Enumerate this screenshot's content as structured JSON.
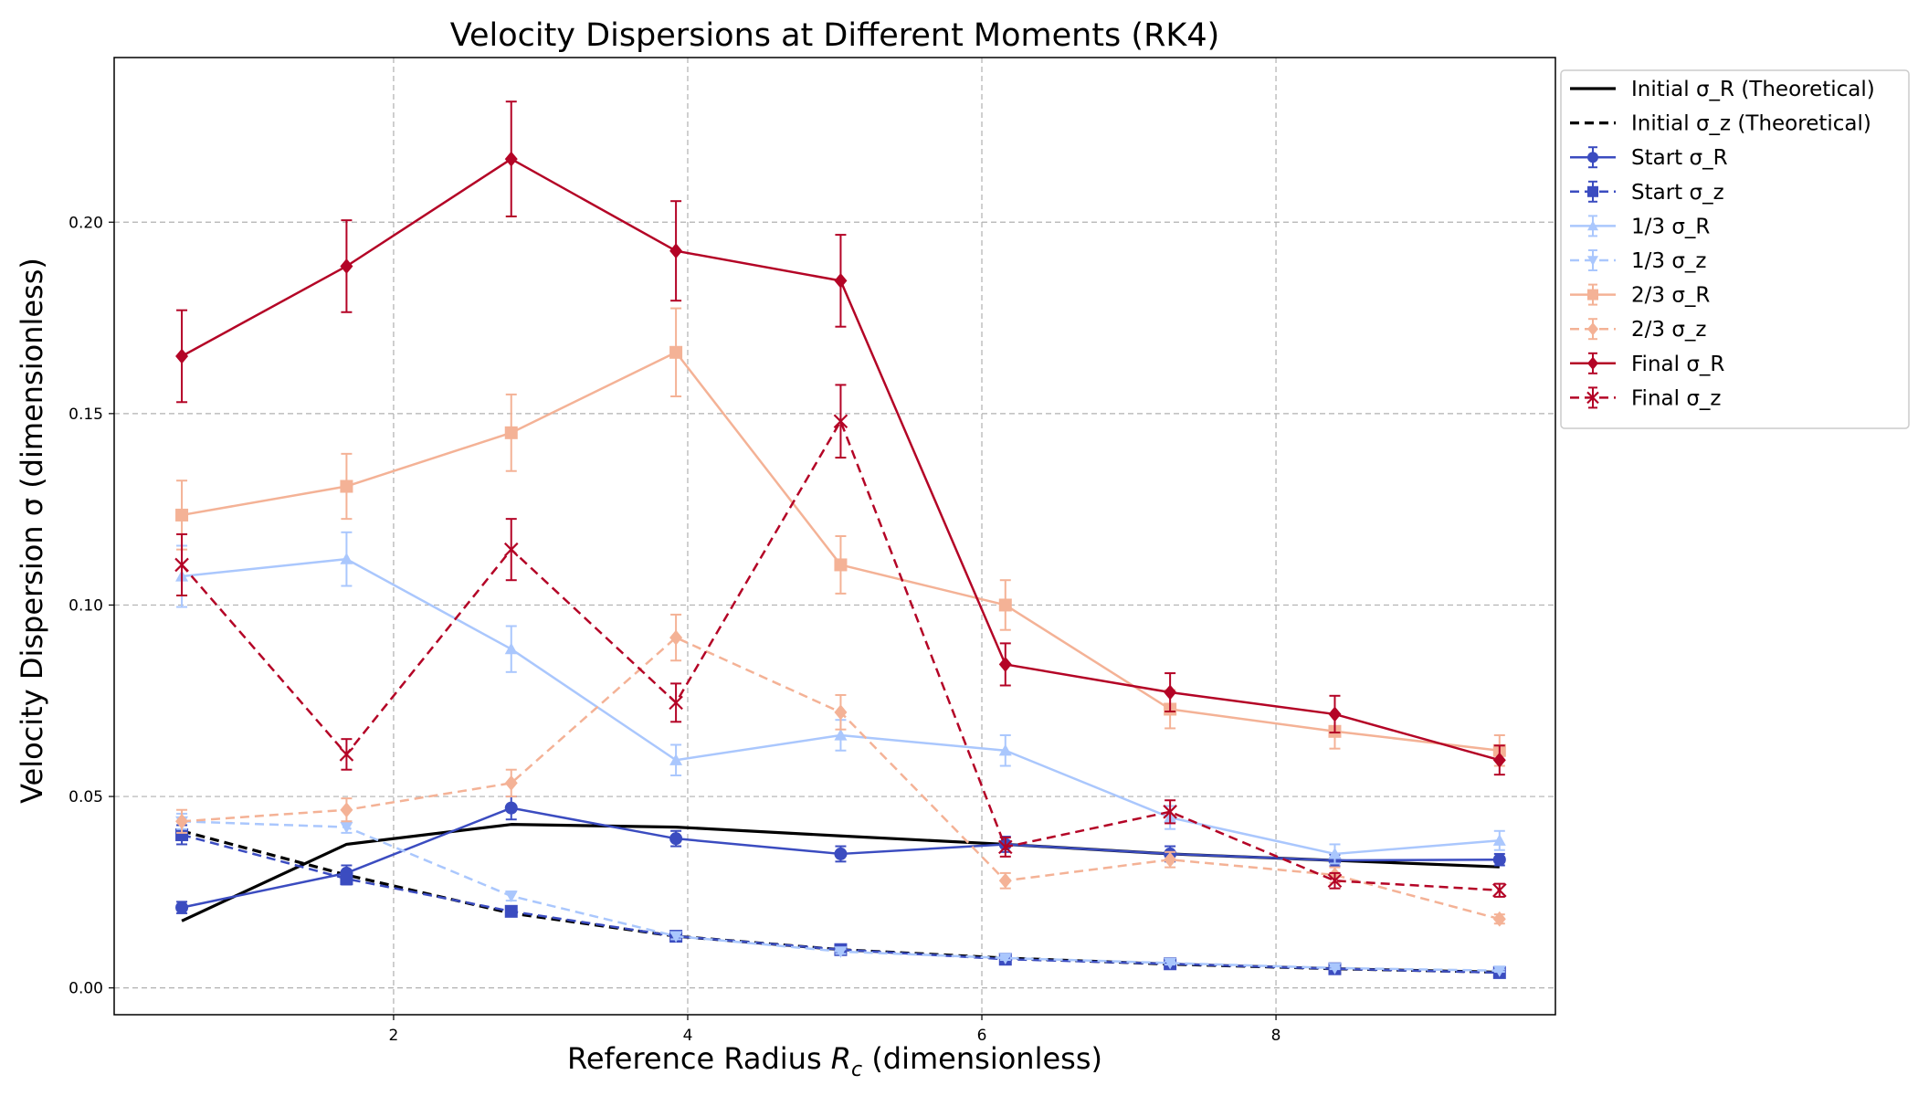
{
  "chart_data": {
    "type": "line",
    "title": "Velocity Dispersions at Different Moments (RK4)",
    "xlabel": "Reference Radius ",
    "xlabel_symbol": "R",
    "xlabel_subscript": "c",
    "xlabel_suffix": " (dimensionless)",
    "ylabel": "Velocity Dispersion σ (dimensionless)",
    "xlim": [
      0.1,
      9.9
    ],
    "ylim": [
      -0.007,
      0.243
    ],
    "xticks": [
      2,
      4,
      6,
      8
    ],
    "yticks": [
      0.0,
      0.05,
      0.1,
      0.15,
      0.2
    ],
    "xtick_labels": [
      "2",
      "4",
      "6",
      "8"
    ],
    "ytick_labels": [
      "0.00",
      "0.05",
      "0.10",
      "0.15",
      "0.20"
    ],
    "grid": true,
    "legend_position": "outside-right-top",
    "x": [
      0.56,
      1.68,
      2.8,
      3.92,
      5.04,
      6.16,
      7.28,
      8.4,
      9.52
    ],
    "theory_x": [
      0.56,
      1.68,
      2.8,
      3.92,
      5.04,
      6.16,
      7.28,
      8.4,
      9.52
    ],
    "series": [
      {
        "name": "Initial σ_R (Theoretical)",
        "color": "#000000",
        "dash": "solid",
        "marker": "none",
        "theory": true,
        "values": [
          0.0175,
          0.0375,
          0.0427,
          0.042,
          0.0397,
          0.0375,
          0.035,
          0.0333,
          0.0316
        ]
      },
      {
        "name": "Initial σ_z (Theoretical)",
        "color": "#000000",
        "dash": "dashed",
        "marker": "none",
        "theory": true,
        "values": [
          0.041,
          0.0295,
          0.0195,
          0.0135,
          0.01,
          0.0078,
          0.0062,
          0.005,
          0.0041
        ]
      },
      {
        "name": "Start σ_R",
        "color": "#3b4cc0",
        "dash": "solid",
        "marker": "circle",
        "values": [
          0.021,
          0.03,
          0.047,
          0.039,
          0.035,
          0.0375,
          0.035,
          0.0333,
          0.0335
        ],
        "errors": [
          0.0015,
          0.002,
          0.003,
          0.002,
          0.002,
          0.002,
          0.002,
          0.0015,
          0.0015
        ]
      },
      {
        "name": "Start σ_z",
        "color": "#3b4cc0",
        "dash": "dashed",
        "marker": "square",
        "values": [
          0.04,
          0.0285,
          0.02,
          0.0135,
          0.01,
          0.0075,
          0.0063,
          0.005,
          0.004
        ],
        "errors": [
          0.0025,
          0.0015,
          0.001,
          0.0008,
          0.0006,
          0.0005,
          0.0004,
          0.0003,
          0.0003
        ]
      },
      {
        "name": "1/3 σ_R",
        "color": "#aac7fd",
        "dash": "solid",
        "marker": "triangle-up",
        "values": [
          0.1075,
          0.112,
          0.0885,
          0.0595,
          0.066,
          0.062,
          0.0445,
          0.035,
          0.0385
        ],
        "errors": [
          0.008,
          0.007,
          0.006,
          0.004,
          0.004,
          0.004,
          0.003,
          0.0025,
          0.0025
        ]
      },
      {
        "name": "1/3 σ_z",
        "color": "#aac7fd",
        "dash": "dashed",
        "marker": "triangle-down",
        "values": [
          0.0435,
          0.042,
          0.024,
          0.0135,
          0.0095,
          0.0078,
          0.0065,
          0.0052,
          0.0045
        ],
        "errors": [
          0.002,
          0.0015,
          0.0012,
          0.0008,
          0.0006,
          0.0005,
          0.0004,
          0.0003,
          0.0003
        ]
      },
      {
        "name": "2/3 σ_R",
        "color": "#f4b296",
        "dash": "solid",
        "marker": "square",
        "values": [
          0.1235,
          0.131,
          0.145,
          0.166,
          0.1105,
          0.1,
          0.0728,
          0.067,
          0.062
        ],
        "errors": [
          0.009,
          0.0085,
          0.01,
          0.0115,
          0.0075,
          0.0065,
          0.005,
          0.0045,
          0.004
        ]
      },
      {
        "name": "2/3 σ_z",
        "color": "#f4b296",
        "dash": "dashed",
        "marker": "diamond",
        "values": [
          0.0435,
          0.0465,
          0.0535,
          0.0915,
          0.072,
          0.028,
          0.0335,
          0.0295,
          0.018
        ],
        "errors": [
          0.003,
          0.003,
          0.0035,
          0.006,
          0.0045,
          0.002,
          0.002,
          0.002,
          0.0012
        ]
      },
      {
        "name": "Final σ_R",
        "color": "#b40426",
        "dash": "solid",
        "marker": "diamond",
        "values": [
          0.165,
          0.1885,
          0.2165,
          0.1925,
          0.1847,
          0.0845,
          0.0772,
          0.0715,
          0.0595
        ],
        "errors": [
          0.012,
          0.012,
          0.015,
          0.013,
          0.012,
          0.0055,
          0.005,
          0.0048,
          0.0038
        ]
      },
      {
        "name": "Final σ_z",
        "color": "#b40426",
        "dash": "dashed",
        "marker": "x",
        "values": [
          0.1105,
          0.061,
          0.1145,
          0.0745,
          0.148,
          0.0368,
          0.046,
          0.028,
          0.0255
        ],
        "errors": [
          0.008,
          0.004,
          0.008,
          0.005,
          0.0095,
          0.0025,
          0.003,
          0.002,
          0.0017
        ]
      }
    ]
  }
}
